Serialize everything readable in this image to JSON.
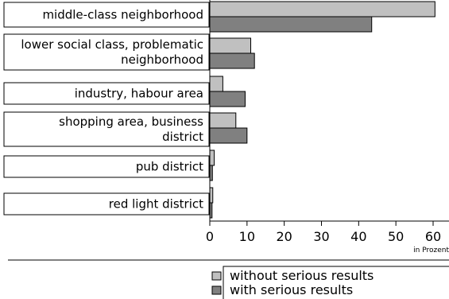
{
  "chart_data": {
    "type": "bar",
    "orientation": "horizontal",
    "categories": [
      [
        "middle-class neighborhood"
      ],
      [
        "lower social class, problematic",
        "neighborhood"
      ],
      [
        "industry, habour area"
      ],
      [
        "shopping area, business",
        "district"
      ],
      [
        "pub district"
      ],
      [
        "red light district"
      ]
    ],
    "series": [
      {
        "name": "without serious results",
        "color": "#c0c0c0",
        "values": [
          60.5,
          11,
          3.5,
          7,
          1.2,
          0.8
        ]
      },
      {
        "name": "with serious results",
        "color": "#808080",
        "values": [
          43.5,
          12,
          9.5,
          10,
          0.7,
          0.6
        ]
      }
    ],
    "xlim": [
      0,
      65
    ],
    "xticks": [
      0,
      10,
      20,
      30,
      40,
      50,
      60
    ],
    "xunit": "in Prozent",
    "grid": false,
    "legend": "bottom"
  }
}
